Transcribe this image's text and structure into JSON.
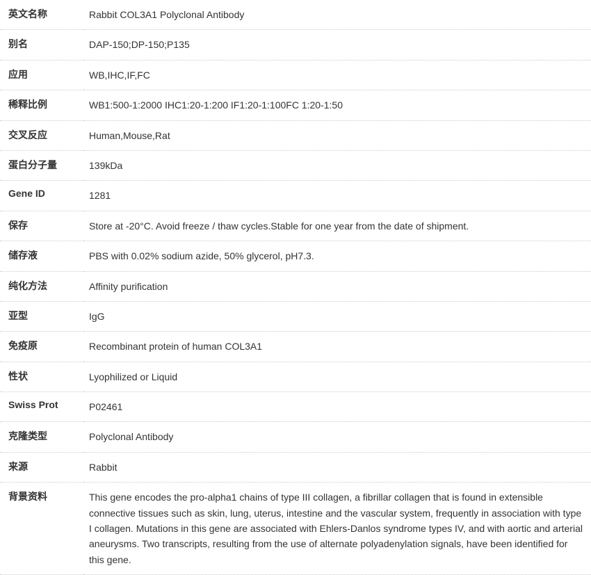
{
  "table": {
    "border_color": "#cccccc",
    "border_style": "dotted",
    "background_color": "#ffffff",
    "label_width": 120,
    "font_size": 14,
    "label_font_weight": "bold",
    "text_color": "#333333",
    "rows": [
      {
        "label": "英文名称",
        "value": "Rabbit COL3A1 Polyclonal Antibody"
      },
      {
        "label": "别名",
        "value": "DAP-150;DP-150;P135"
      },
      {
        "label": "应用",
        "value": "WB,IHC,IF,FC"
      },
      {
        "label": "稀释比例",
        "value": "WB1:500-1:2000 IHC1:20-1:200 IF1:20-1:100FC 1:20-1:50"
      },
      {
        "label": "交叉反应",
        "value": "Human,Mouse,Rat"
      },
      {
        "label": "蛋白分子量",
        "value": "139kDa"
      },
      {
        "label": "Gene ID",
        "value": "1281"
      },
      {
        "label": "保存",
        "value": "Store at -20°C. Avoid freeze / thaw cycles.Stable for one year from the date of shipment."
      },
      {
        "label": "储存液",
        "value": "PBS with 0.02% sodium azide, 50% glycerol, pH7.3."
      },
      {
        "label": "纯化方法",
        "value": "Affinity purification"
      },
      {
        "label": "亚型",
        "value": "IgG"
      },
      {
        "label": "免疫原",
        "value": "Recombinant protein of human COL3A1"
      },
      {
        "label": "性状",
        "value": "Lyophilized or Liquid"
      },
      {
        "label": "Swiss Prot",
        "value": "P02461"
      },
      {
        "label": "克隆类型",
        "value": "Polyclonal Antibody"
      },
      {
        "label": "来源",
        "value": "Rabbit"
      },
      {
        "label": "背景资料",
        "value": "This gene encodes the pro-alpha1 chains of type III collagen, a fibrillar collagen that is found in extensible connective tissues such as skin, lung, uterus, intestine and the vascular system, frequently in association with type I collagen. Mutations in this gene are associated with Ehlers-Danlos syndrome types IV, and with aortic and arterial aneurysms. Two transcripts, resulting from the use of alternate polyadenylation signals, have been identified for this gene."
      }
    ]
  }
}
